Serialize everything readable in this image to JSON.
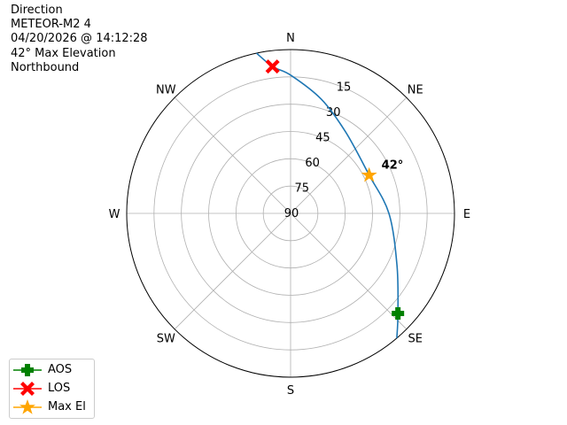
{
  "info": [
    "Direction",
    "METEOR-M2 4",
    "04/20/2026 @ 14:12:28",
    "42° Max Elevation",
    "Northbound"
  ],
  "chart_data": {
    "type": "polar",
    "title": "",
    "directions": [
      {
        "label": "N",
        "az": 0
      },
      {
        "label": "NE",
        "az": 45
      },
      {
        "label": "E",
        "az": 90
      },
      {
        "label": "SE",
        "az": 135
      },
      {
        "label": "S",
        "az": 180
      },
      {
        "label": "SW",
        "az": 225
      },
      {
        "label": "W",
        "az": 270
      },
      {
        "label": "NW",
        "az": 315
      }
    ],
    "elevation_rings": [
      90,
      75,
      60,
      45,
      30,
      15,
      0
    ],
    "elevation_tick_labels": [
      "90",
      "75",
      "60",
      "45",
      "30",
      "15"
    ],
    "grid": true,
    "track": {
      "color": "#1f77b4",
      "points": [
        [
          139.6,
          0
        ],
        [
          133,
          9.4
        ],
        [
          116,
          25
        ],
        [
          90,
          36
        ],
        [
          64,
          42
        ],
        [
          34,
          36
        ],
        [
          15,
          25
        ],
        [
          0,
          14
        ],
        [
          353,
          8.7
        ],
        [
          348,
          0
        ]
      ]
    },
    "markers": [
      {
        "name": "AOS",
        "az": 133,
        "el": 9.4,
        "color": "#008000",
        "shape": "plus"
      },
      {
        "name": "LOS",
        "az": 353,
        "el": 8.7,
        "color": "#ff0000",
        "shape": "x"
      },
      {
        "name": "Max El",
        "az": 64,
        "el": 42,
        "color": "#ffa500",
        "shape": "star"
      }
    ],
    "annotation": {
      "text": "42°",
      "az": 64,
      "el": 42
    },
    "legend_position": "lower-left"
  }
}
